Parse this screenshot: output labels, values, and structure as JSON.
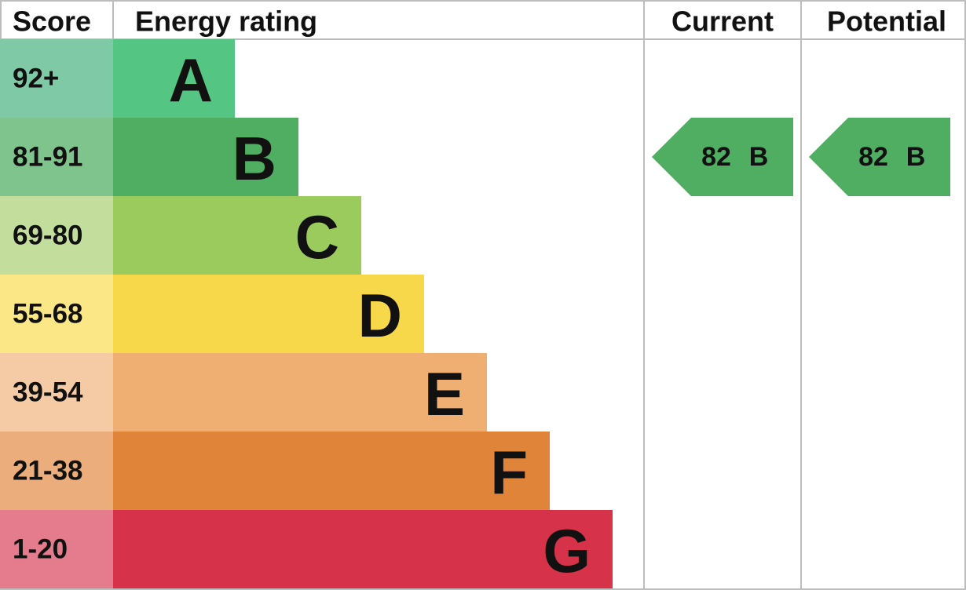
{
  "header": {
    "score": "Score",
    "rating": "Energy rating",
    "current": "Current",
    "potential": "Potential"
  },
  "bands": [
    {
      "score": "92+",
      "letter": "A"
    },
    {
      "score": "81-91",
      "letter": "B"
    },
    {
      "score": "69-80",
      "letter": "C"
    },
    {
      "score": "55-68",
      "letter": "D"
    },
    {
      "score": "39-54",
      "letter": "E"
    },
    {
      "score": "21-38",
      "letter": "F"
    },
    {
      "score": "1-20",
      "letter": "G"
    }
  ],
  "current": {
    "score": "82",
    "letter": "B"
  },
  "potential": {
    "score": "82",
    "letter": "B"
  }
}
